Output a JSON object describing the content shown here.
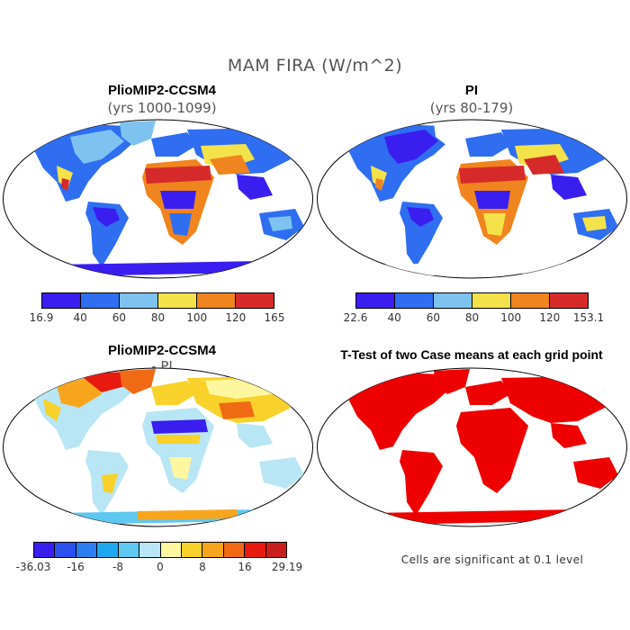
{
  "figure": {
    "title": "MAM FIRA (W/m^2)"
  },
  "panels": {
    "top_left": {
      "title": "PlioMIP2-CCSM4",
      "subtitle": "(yrs 1000-1099)",
      "colorbar": {
        "labels": [
          "16.9",
          "40",
          "60",
          "80",
          "100",
          "120",
          "165"
        ],
        "colors": [
          "#3a1ef0",
          "#2f6ef0",
          "#7ec3f0",
          "#f4e24a",
          "#f0841e",
          "#d62a2a"
        ]
      }
    },
    "top_right": {
      "title": "PI",
      "subtitle": "(yrs 80-179)",
      "colorbar": {
        "labels": [
          "22.6",
          "40",
          "60",
          "80",
          "100",
          "120",
          "153.1"
        ],
        "colors": [
          "#3a1ef0",
          "#2f6ef0",
          "#7ec3f0",
          "#f4e24a",
          "#f0841e",
          "#d62a2a"
        ]
      }
    },
    "bottom_left": {
      "title": "PlioMIP2-CCSM4",
      "subtitle": "- PI",
      "colorbar": {
        "labels": [
          "-36.03",
          "-16",
          "-8",
          "0",
          "8",
          "16",
          "29.19"
        ],
        "colors": [
          "#3a1ef0",
          "#2a50f0",
          "#2a7ef0",
          "#1ea8f0",
          "#5ec8f0",
          "#b8e6f4",
          "#fff7a0",
          "#f8d22a",
          "#f8a51e",
          "#f06a14",
          "#e81a10",
          "#c81e1e"
        ]
      }
    },
    "bottom_right": {
      "title": "T-Test of two Case means at each grid point",
      "note": "Cells are significant at 0.1 level",
      "fill_color": "#ee0000"
    }
  }
}
